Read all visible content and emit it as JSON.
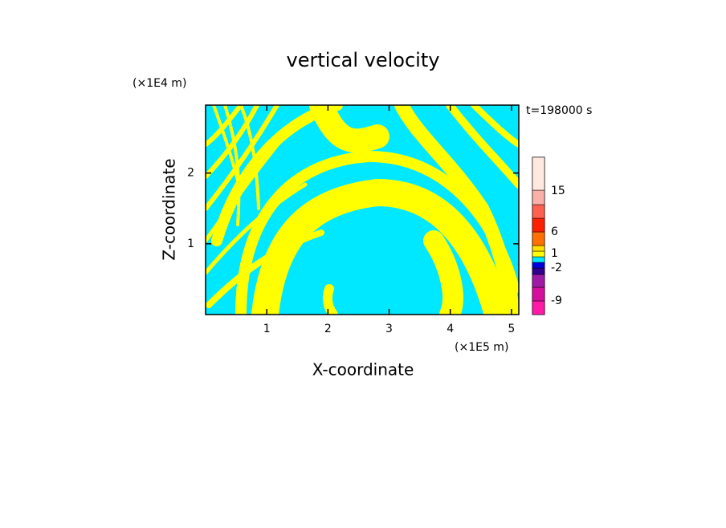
{
  "chart_data": {
    "type": "contour",
    "title": "vertical velocity",
    "x_label": "X-coordinate",
    "y_label": "Z-coordinate",
    "x_unit": "(×1E5 m)",
    "y_unit": "(×1E4 m)",
    "annotation": "t=198000 s",
    "xlim": [
      0,
      5.12
    ],
    "ylim": [
      0,
      2.96
    ],
    "xticks": [
      1,
      2,
      3,
      4,
      5
    ],
    "yticks": [
      1,
      2
    ],
    "colorbar": {
      "colors": [
        "#ff1aa8",
        "#d4109c",
        "#a01aa8",
        "#300090",
        "#0000e0",
        "#00e8ff",
        "#ffff00",
        "#ffe000",
        "#ff7000",
        "#ff2000",
        "#ff6050",
        "#f8b0a8",
        "#ffe8e0"
      ],
      "ticks": [
        -9,
        -2,
        1,
        6,
        15
      ]
    }
  }
}
